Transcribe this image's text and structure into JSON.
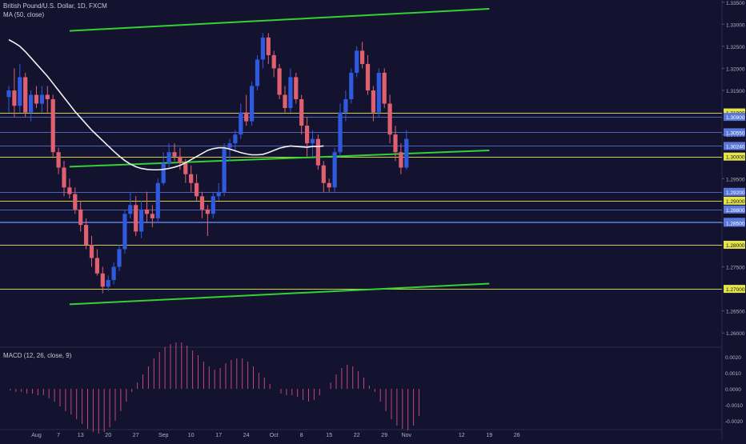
{
  "header": {
    "title": "British Pound/U.S. Dollar, 1D, FXCM",
    "ma_label": "MA (50, close)",
    "macd_label": "MACD (12, 26, close, 9)"
  },
  "colors": {
    "background": "#131330",
    "up": "#2f5ae0",
    "down": "#e06070",
    "ma": "#f2f2f2",
    "trend": "#32d232",
    "yellow": "#e4e44c",
    "blue": "#5a78dc",
    "macd_hist": "#e0508a",
    "axis_text": "#b0b0c0"
  },
  "chart_data": [
    {
      "type": "candlestick",
      "ylim": [
        1.2575,
        1.3355
      ],
      "y_ticks": [
        "1.33500",
        "1.33000",
        "1.32500",
        "1.32000",
        "1.31500",
        "1.30500",
        "1.29500",
        "1.28500",
        "1.27500",
        "1.26500",
        "1.26000"
      ],
      "x_ticks": [
        {
          "label": "Aug",
          "index": 5
        },
        {
          "label": "7",
          "index": 9
        },
        {
          "label": "13",
          "index": 13
        },
        {
          "label": "20",
          "index": 18
        },
        {
          "label": "27",
          "index": 23
        },
        {
          "label": "Sep",
          "index": 28
        },
        {
          "label": "10",
          "index": 33
        },
        {
          "label": "17",
          "index": 38
        },
        {
          "label": "24",
          "index": 43
        },
        {
          "label": "Oct",
          "index": 48
        },
        {
          "label": "8",
          "index": 53
        },
        {
          "label": "15",
          "index": 58
        },
        {
          "label": "22",
          "index": 63
        },
        {
          "label": "29",
          "index": 68
        },
        {
          "label": "Nov",
          "index": 72
        },
        {
          "label": "12",
          "index": 82
        },
        {
          "label": "19",
          "index": 87
        },
        {
          "label": "26",
          "index": 92
        }
      ],
      "price_lines": [
        {
          "value": 1.31,
          "label": "1.31000",
          "color": "yellow"
        },
        {
          "value": 1.309,
          "label": "1.30900",
          "color": "blue"
        },
        {
          "value": 1.3055,
          "label": "1.30550",
          "color": "blue"
        },
        {
          "value": 1.3024,
          "label": "1.30240",
          "color": "blue"
        },
        {
          "value": 1.3,
          "label": "1.30000",
          "color": "yellow"
        },
        {
          "value": 1.292,
          "label": "1.29200",
          "color": "blue"
        },
        {
          "value": 1.29,
          "label": "1.29000",
          "color": "yellow"
        },
        {
          "value": 1.288,
          "label": "1.28800",
          "color": "blue"
        },
        {
          "value": 1.2852,
          "label": "1.28520",
          "color": "blue"
        },
        {
          "value": 1.285,
          "label": "1.28500",
          "color": "blue"
        },
        {
          "value": 1.28,
          "label": "1.28000",
          "color": "yellow"
        },
        {
          "value": 1.27,
          "label": "1.27000",
          "color": "yellow"
        }
      ],
      "trend_lines": [
        {
          "x1": 11,
          "y1": 1.3285,
          "x2": 87,
          "y2": 1.3335
        },
        {
          "x1": 11,
          "y1": 1.2977,
          "x2": 87,
          "y2": 1.3014
        },
        {
          "x1": 11,
          "y1": 1.2665,
          "x2": 87,
          "y2": 1.2712
        }
      ],
      "candles": [
        [
          1.3135,
          1.316,
          1.31,
          1.315
        ],
        [
          1.315,
          1.32,
          1.309,
          1.3115
        ],
        [
          1.3115,
          1.321,
          1.31,
          1.318
        ],
        [
          1.318,
          1.319,
          1.309,
          1.31
        ],
        [
          1.31,
          1.315,
          1.308,
          1.314
        ],
        [
          1.314,
          1.316,
          1.311,
          1.312
        ],
        [
          1.312,
          1.316,
          1.31,
          1.314
        ],
        [
          1.314,
          1.316,
          1.31,
          1.313
        ],
        [
          1.313,
          1.314,
          1.3,
          1.301
        ],
        [
          1.301,
          1.302,
          1.296,
          1.2975
        ],
        [
          1.2975,
          1.299,
          1.291,
          1.293
        ],
        [
          1.293,
          1.295,
          1.2905,
          1.2915
        ],
        [
          1.2915,
          1.293,
          1.287,
          1.288
        ],
        [
          1.288,
          1.29,
          1.283,
          1.2845
        ],
        [
          1.2845,
          1.286,
          1.279,
          1.28
        ],
        [
          1.28,
          1.282,
          1.275,
          1.277
        ],
        [
          1.277,
          1.279,
          1.273,
          1.2735
        ],
        [
          1.2735,
          1.275,
          1.269,
          1.2705
        ],
        [
          1.2705,
          1.273,
          1.2695,
          1.272
        ],
        [
          1.272,
          1.276,
          1.271,
          1.275
        ],
        [
          1.275,
          1.28,
          1.274,
          1.279
        ],
        [
          1.279,
          1.288,
          1.278,
          1.287
        ],
        [
          1.287,
          1.292,
          1.286,
          1.289
        ],
        [
          1.289,
          1.291,
          1.282,
          1.283
        ],
        [
          1.283,
          1.29,
          1.2815,
          1.288
        ],
        [
          1.288,
          1.292,
          1.285,
          1.287
        ],
        [
          1.287,
          1.289,
          1.284,
          1.286
        ],
        [
          1.286,
          1.295,
          1.285,
          1.294
        ],
        [
          1.294,
          1.301,
          1.2935,
          1.2985
        ],
        [
          1.2985,
          1.303,
          1.2975,
          1.301
        ],
        [
          1.301,
          1.303,
          1.299,
          1.3
        ],
        [
          1.3,
          1.302,
          1.297,
          1.2985
        ],
        [
          1.2985,
          1.2995,
          1.294,
          1.296
        ],
        [
          1.296,
          1.298,
          1.292,
          1.294
        ],
        [
          1.294,
          1.296,
          1.29,
          1.291
        ],
        [
          1.291,
          1.292,
          1.286,
          1.288
        ],
        [
          1.288,
          1.289,
          1.282,
          1.287
        ],
        [
          1.287,
          1.292,
          1.286,
          1.291
        ],
        [
          1.291,
          1.294,
          1.29,
          1.292
        ],
        [
          1.292,
          1.303,
          1.291,
          1.302
        ],
        [
          1.302,
          1.304,
          1.299,
          1.303
        ],
        [
          1.303,
          1.306,
          1.301,
          1.305
        ],
        [
          1.305,
          1.312,
          1.304,
          1.31
        ],
        [
          1.31,
          1.314,
          1.307,
          1.308
        ],
        [
          1.308,
          1.317,
          1.307,
          1.316
        ],
        [
          1.316,
          1.323,
          1.315,
          1.322
        ],
        [
          1.322,
          1.328,
          1.32,
          1.327
        ],
        [
          1.327,
          1.328,
          1.321,
          1.323
        ],
        [
          1.323,
          1.324,
          1.318,
          1.32
        ],
        [
          1.32,
          1.321,
          1.313,
          1.314
        ],
        [
          1.314,
          1.316,
          1.31,
          1.311
        ],
        [
          1.311,
          1.32,
          1.31,
          1.318
        ],
        [
          1.318,
          1.319,
          1.312,
          1.313
        ],
        [
          1.313,
          1.314,
          1.305,
          1.307
        ],
        [
          1.307,
          1.309,
          1.3,
          1.303
        ],
        [
          1.303,
          1.306,
          1.3,
          1.304
        ],
        [
          1.304,
          1.305,
          1.297,
          1.298
        ],
        [
          1.298,
          1.299,
          1.292,
          1.294
        ],
        [
          1.294,
          1.295,
          1.292,
          1.293
        ],
        [
          1.293,
          1.302,
          1.292,
          1.301
        ],
        [
          1.301,
          1.312,
          1.3,
          1.31
        ],
        [
          1.31,
          1.315,
          1.308,
          1.313
        ],
        [
          1.313,
          1.32,
          1.312,
          1.319
        ],
        [
          1.319,
          1.325,
          1.318,
          1.324
        ],
        [
          1.324,
          1.326,
          1.32,
          1.321
        ],
        [
          1.321,
          1.323,
          1.314,
          1.315
        ],
        [
          1.315,
          1.316,
          1.308,
          1.31
        ],
        [
          1.31,
          1.32,
          1.309,
          1.319
        ],
        [
          1.319,
          1.32,
          1.311,
          1.312
        ],
        [
          1.312,
          1.314,
          1.303,
          1.305
        ],
        [
          1.305,
          1.307,
          1.299,
          1.301
        ],
        [
          1.301,
          1.303,
          1.296,
          1.2975
        ],
        [
          1.2975,
          1.306,
          1.297,
          1.304
        ]
      ],
      "ma": [
        1.3265,
        1.3258,
        1.325,
        1.3238,
        1.3224,
        1.321,
        1.3196,
        1.3182,
        1.3166,
        1.315,
        1.3134,
        1.3118,
        1.3102,
        1.3088,
        1.3074,
        1.306,
        1.3048,
        1.3036,
        1.3024,
        1.3012,
        1.3001,
        1.2991,
        1.2983,
        1.2977,
        1.2973,
        1.2971,
        1.297,
        1.297,
        1.2971,
        1.2973,
        1.2976,
        1.298,
        1.2986,
        1.2993,
        1.3,
        1.3007,
        1.3014,
        1.3018,
        1.302,
        1.302,
        1.3017,
        1.3013,
        1.3009,
        1.3006,
        1.3004,
        1.3004,
        1.3005,
        1.3009,
        1.3014,
        1.3019,
        1.3022,
        1.3024,
        1.3023,
        1.3022,
        1.3021,
        1.3023,
        1.3023,
        1.3024
      ]
    },
    {
      "type": "bar",
      "ylim": [
        -0.0025,
        0.0025
      ],
      "y_ticks": [
        "0.0020",
        "0.0010",
        "0.0000",
        "-0.0010",
        "-0.0020"
      ],
      "values": [
        0.0,
        -0.0001,
        -0.0002,
        -0.0002,
        -0.0003,
        -0.0003,
        -0.0004,
        -0.0004,
        -0.0006,
        -0.0008,
        -0.0011,
        -0.0014,
        -0.0016,
        -0.0019,
        -0.0022,
        -0.0025,
        -0.0027,
        -0.0028,
        -0.0027,
        -0.0024,
        -0.002,
        -0.0014,
        -0.0008,
        -0.0002,
        0.0004,
        0.0009,
        0.0014,
        0.0019,
        0.0023,
        0.0026,
        0.0028,
        0.0029,
        0.0029,
        0.0027,
        0.0024,
        0.0021,
        0.0017,
        0.0014,
        0.0012,
        0.0013,
        0.0016,
        0.0018,
        0.0019,
        0.0019,
        0.0017,
        0.0014,
        0.001,
        0.0007,
        0.0003,
        0.0,
        -0.0003,
        -0.0004,
        -0.0004,
        -0.0005,
        -0.0007,
        -0.0008,
        -0.0007,
        -0.0004,
        0.0,
        0.0004,
        0.0009,
        0.0013,
        0.0015,
        0.0014,
        0.0011,
        0.0007,
        0.0002,
        -0.0002,
        -0.0008,
        -0.0014,
        -0.0019,
        -0.0023,
        -0.0025,
        -0.0026,
        -0.0023,
        -0.0017
      ]
    }
  ]
}
